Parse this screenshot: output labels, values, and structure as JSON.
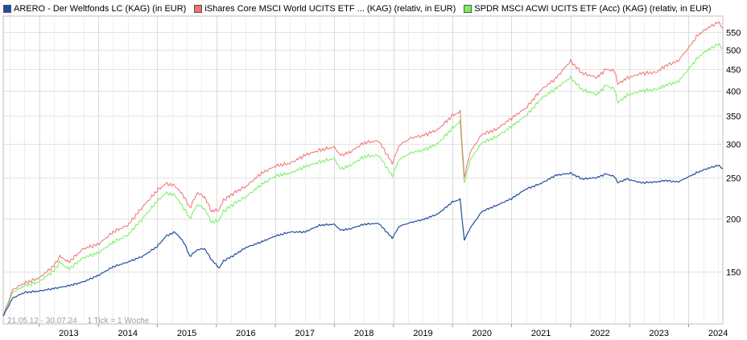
{
  "chart_data": {
    "type": "line",
    "title": "",
    "legend": [
      {
        "name": "ARERO - Der Weltfonds LC (KAG) (in EUR)",
        "color": "#1f4e9c"
      },
      {
        "name": "iShares Core MSCI World UCITS ETF ... (KAG) (relativ, in EUR)",
        "color": "#f07070"
      },
      {
        "name": "SPDR MSCI ACWI UCITS ETF (Acc) (KAG) (relativ, in EUR)",
        "color": "#78ee60"
      }
    ],
    "legend_placement": "top",
    "date_range": "21.05.12 - 30.07.24",
    "tick_note": "1 Tick = 1 Woche",
    "x_tick_labels": [
      "2013",
      "2014",
      "2015",
      "2016",
      "2017",
      "2018",
      "2019",
      "2020",
      "2021",
      "2022",
      "2023",
      "2024"
    ],
    "x_tick_years": [
      2013,
      2014,
      2015,
      2016,
      2017,
      2018,
      2019,
      2020,
      2021,
      2022,
      2023,
      2024
    ],
    "xlim": [
      2012.39,
      2024.58
    ],
    "y_scale": "log",
    "ylim": [
      113,
      600
    ],
    "y_tick_labels": [
      "150",
      "200",
      "250",
      "300",
      "350",
      "400",
      "450",
      "500",
      "550"
    ],
    "y_ticks": [
      150,
      200,
      250,
      300,
      350,
      400,
      450,
      500,
      550
    ],
    "grid": true,
    "series": [
      {
        "name": "ARERO - Der Weltfonds LC (KAG) (in EUR)",
        "color": "#1f4e9c",
        "x": [
          2012.39,
          2012.55,
          2012.75,
          2013.0,
          2013.25,
          2013.5,
          2013.75,
          2014.0,
          2014.25,
          2014.5,
          2014.75,
          2015.0,
          2015.15,
          2015.3,
          2015.45,
          2015.55,
          2015.68,
          2015.8,
          2015.92,
          2016.05,
          2016.12,
          2016.3,
          2016.5,
          2016.75,
          2017.0,
          2017.25,
          2017.5,
          2017.75,
          2018.0,
          2018.1,
          2018.25,
          2018.5,
          2018.75,
          2018.98,
          2019.1,
          2019.3,
          2019.5,
          2019.75,
          2020.0,
          2020.13,
          2020.2,
          2020.3,
          2020.5,
          2020.75,
          2021.0,
          2021.25,
          2021.5,
          2021.75,
          2022.0,
          2022.2,
          2022.45,
          2022.6,
          2022.75,
          2022.8,
          2022.95,
          2023.2,
          2023.45,
          2023.6,
          2023.82,
          2024.0,
          2024.15,
          2024.3,
          2024.5,
          2024.58
        ],
        "values": [
          118,
          130,
          134,
          135,
          137,
          139,
          142,
          147,
          154,
          158,
          163,
          172,
          182,
          186,
          176,
          163,
          169,
          170,
          160,
          153,
          159,
          164,
          171,
          176,
          182,
          186,
          186,
          193,
          194,
          188,
          189,
          194,
          195,
          180,
          192,
          196,
          199,
          205,
          219,
          222,
          178,
          190,
          208,
          215,
          223,
          235,
          242,
          253,
          256,
          248,
          250,
          255,
          251,
          243,
          248,
          243,
          244,
          246,
          244,
          251,
          257,
          262,
          267,
          263
        ]
      },
      {
        "name": "iShares Core MSCI World UCITS ETF ... (KAG) (relativ, in EUR)",
        "color": "#f07070",
        "x": [
          2012.39,
          2012.55,
          2012.75,
          2013.0,
          2013.25,
          2013.35,
          2013.5,
          2013.75,
          2014.0,
          2014.25,
          2014.5,
          2014.75,
          2015.0,
          2015.15,
          2015.3,
          2015.45,
          2015.55,
          2015.68,
          2015.8,
          2015.92,
          2016.05,
          2016.12,
          2016.3,
          2016.5,
          2016.75,
          2017.0,
          2017.25,
          2017.5,
          2017.75,
          2018.0,
          2018.1,
          2018.25,
          2018.5,
          2018.75,
          2018.98,
          2019.1,
          2019.3,
          2019.5,
          2019.75,
          2020.0,
          2020.13,
          2020.2,
          2020.3,
          2020.5,
          2020.75,
          2021.0,
          2021.25,
          2021.5,
          2021.75,
          2022.0,
          2022.2,
          2022.45,
          2022.6,
          2022.75,
          2022.8,
          2022.95,
          2023.2,
          2023.45,
          2023.6,
          2023.82,
          2024.0,
          2024.15,
          2024.3,
          2024.5,
          2024.58
        ],
        "values": [
          118,
          136,
          141,
          145,
          155,
          163,
          158,
          170,
          174,
          186,
          193,
          213,
          233,
          242,
          239,
          226,
          212,
          230,
          225,
          208,
          210,
          221,
          230,
          238,
          255,
          266,
          270,
          282,
          290,
          295,
          282,
          286,
          302,
          305,
          270,
          298,
          310,
          314,
          324,
          350,
          357,
          250,
          287,
          316,
          325,
          345,
          365,
          402,
          428,
          470,
          440,
          430,
          450,
          445,
          415,
          428,
          440,
          442,
          458,
          470,
          505,
          540,
          560,
          580,
          565
        ]
      },
      {
        "name": "SPDR MSCI ACWI UCITS ETF (Acc) (KAG) (relativ, in EUR)",
        "color": "#78ee60",
        "x": [
          2012.39,
          2012.55,
          2012.75,
          2013.0,
          2013.25,
          2013.35,
          2013.5,
          2013.75,
          2014.0,
          2014.25,
          2014.5,
          2014.75,
          2015.0,
          2015.15,
          2015.3,
          2015.45,
          2015.55,
          2015.68,
          2015.8,
          2015.92,
          2016.05,
          2016.12,
          2016.3,
          2016.5,
          2016.75,
          2017.0,
          2017.25,
          2017.5,
          2017.75,
          2018.0,
          2018.1,
          2018.25,
          2018.5,
          2018.75,
          2018.98,
          2019.1,
          2019.3,
          2019.5,
          2019.75,
          2020.0,
          2020.13,
          2020.2,
          2020.3,
          2020.5,
          2020.75,
          2021.0,
          2021.25,
          2021.5,
          2021.75,
          2022.0,
          2022.2,
          2022.45,
          2022.6,
          2022.75,
          2022.8,
          2022.95,
          2023.2,
          2023.45,
          2023.6,
          2023.82,
          2024.0,
          2024.15,
          2024.3,
          2024.5,
          2024.58
        ],
        "values": [
          118,
          134,
          139,
          142,
          151,
          158,
          152,
          162,
          166,
          176,
          183,
          200,
          220,
          230,
          227,
          212,
          200,
          216,
          211,
          196,
          198,
          208,
          217,
          225,
          240,
          252,
          256,
          265,
          272,
          277,
          262,
          266,
          280,
          282,
          252,
          276,
          286,
          290,
          300,
          327,
          338,
          243,
          275,
          302,
          312,
          330,
          350,
          383,
          405,
          430,
          402,
          392,
          412,
          403,
          375,
          390,
          400,
          403,
          412,
          420,
          450,
          478,
          497,
          515,
          505
        ]
      }
    ]
  }
}
